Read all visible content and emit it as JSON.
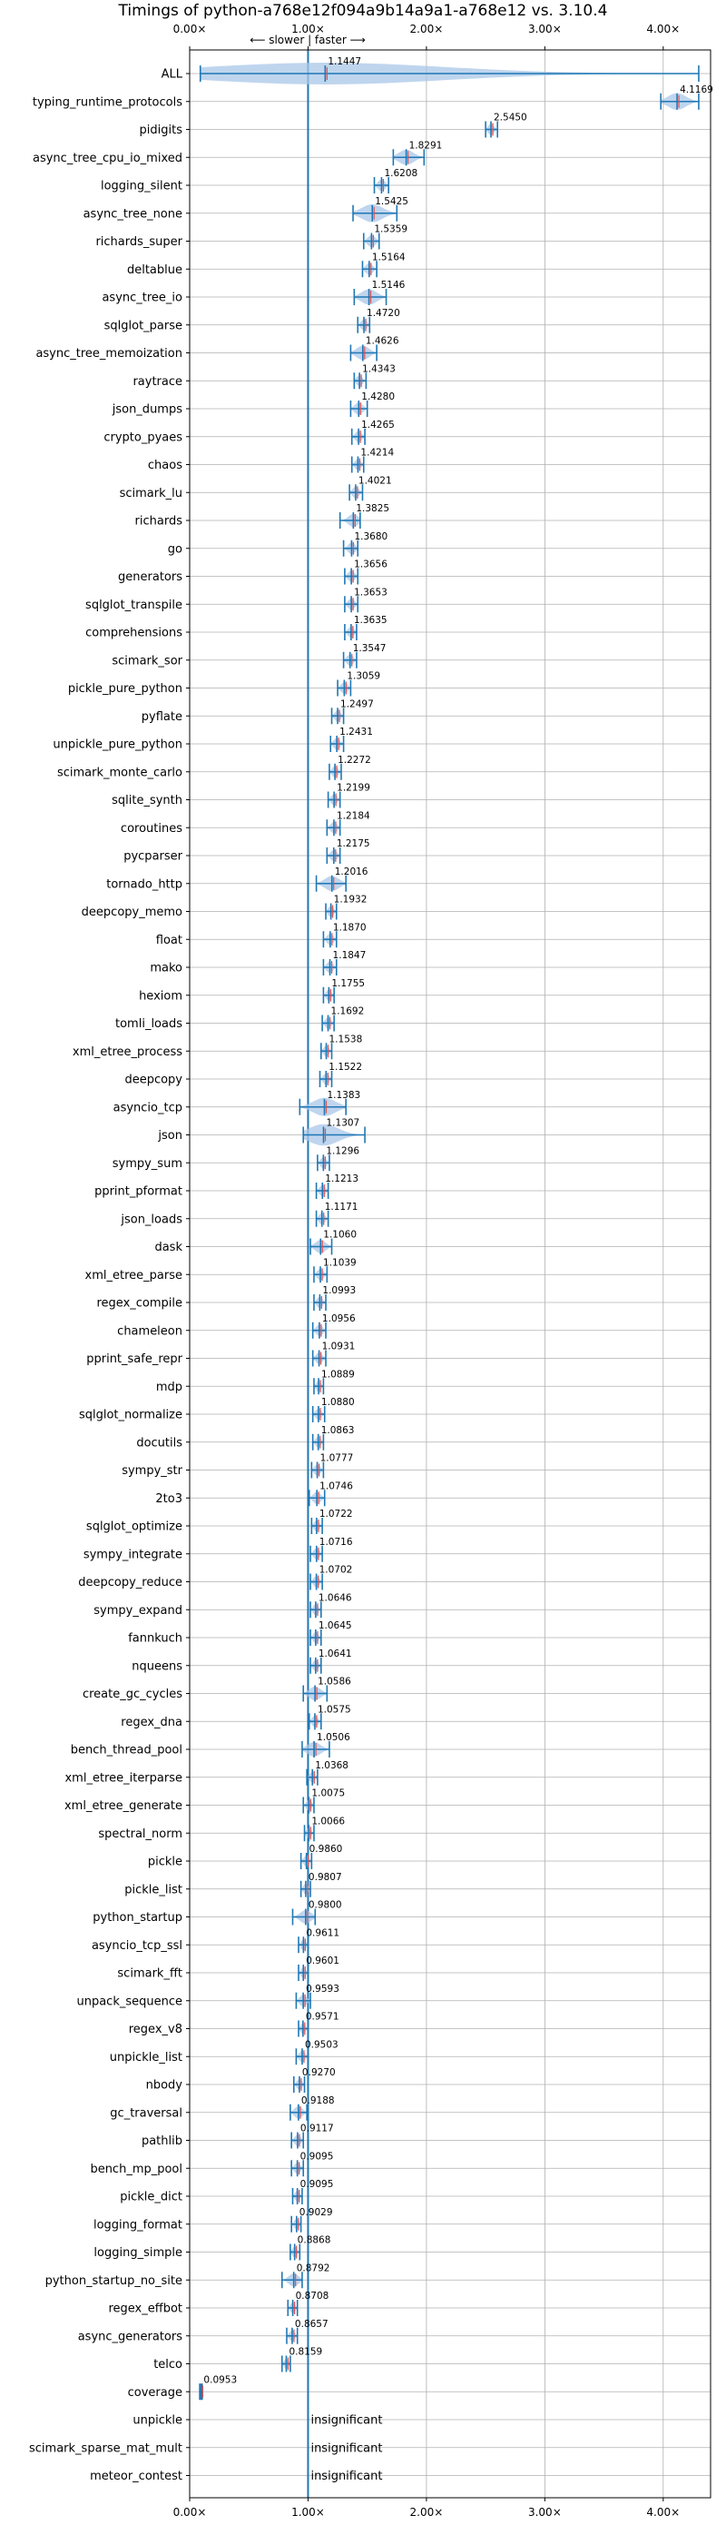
{
  "chart_data": {
    "type": "violin",
    "title": "Timings of python-a768e12f094a9b14a9a1-a768e12 vs. 3.10.4",
    "direction_hint": "⟵ slower | faster ⟶",
    "xlim": [
      0,
      4.4
    ],
    "xticks": [
      "0.00×",
      "1.00×",
      "2.00×",
      "3.00×",
      "4.00×"
    ],
    "reference_line": 1.0,
    "grid": true,
    "insignificant_label": "insignificant",
    "benchmarks": [
      {
        "name": "ALL",
        "value": 1.1447,
        "min": 0.09,
        "max": 4.3
      },
      {
        "name": "typing_runtime_protocols",
        "value": 4.1169,
        "min": 3.98,
        "max": 4.3
      },
      {
        "name": "pidigits",
        "value": 2.545,
        "min": 2.5,
        "max": 2.6
      },
      {
        "name": "async_tree_cpu_io_mixed",
        "value": 1.8291,
        "min": 1.72,
        "max": 1.98
      },
      {
        "name": "logging_silent",
        "value": 1.6208,
        "min": 1.56,
        "max": 1.68
      },
      {
        "name": "async_tree_none",
        "value": 1.5425,
        "min": 1.38,
        "max": 1.75
      },
      {
        "name": "richards_super",
        "value": 1.5359,
        "min": 1.47,
        "max": 1.6
      },
      {
        "name": "deltablue",
        "value": 1.5164,
        "min": 1.46,
        "max": 1.58
      },
      {
        "name": "async_tree_io",
        "value": 1.5146,
        "min": 1.39,
        "max": 1.66
      },
      {
        "name": "sqlglot_parse",
        "value": 1.472,
        "min": 1.42,
        "max": 1.52
      },
      {
        "name": "async_tree_memoization",
        "value": 1.4626,
        "min": 1.36,
        "max": 1.58
      },
      {
        "name": "raytrace",
        "value": 1.4343,
        "min": 1.39,
        "max": 1.49
      },
      {
        "name": "json_dumps",
        "value": 1.428,
        "min": 1.36,
        "max": 1.5
      },
      {
        "name": "crypto_pyaes",
        "value": 1.4265,
        "min": 1.37,
        "max": 1.48
      },
      {
        "name": "chaos",
        "value": 1.4214,
        "min": 1.37,
        "max": 1.47
      },
      {
        "name": "scimark_lu",
        "value": 1.4021,
        "min": 1.35,
        "max": 1.46
      },
      {
        "name": "richards",
        "value": 1.3825,
        "min": 1.27,
        "max": 1.44
      },
      {
        "name": "go",
        "value": 1.368,
        "min": 1.3,
        "max": 1.42
      },
      {
        "name": "generators",
        "value": 1.3656,
        "min": 1.31,
        "max": 1.42
      },
      {
        "name": "sqlglot_transpile",
        "value": 1.3653,
        "min": 1.31,
        "max": 1.42
      },
      {
        "name": "comprehensions",
        "value": 1.3635,
        "min": 1.31,
        "max": 1.41
      },
      {
        "name": "scimark_sor",
        "value": 1.3547,
        "min": 1.3,
        "max": 1.41
      },
      {
        "name": "pickle_pure_python",
        "value": 1.3059,
        "min": 1.25,
        "max": 1.36
      },
      {
        "name": "pyflate",
        "value": 1.2497,
        "min": 1.2,
        "max": 1.3
      },
      {
        "name": "unpickle_pure_python",
        "value": 1.2431,
        "min": 1.19,
        "max": 1.3
      },
      {
        "name": "scimark_monte_carlo",
        "value": 1.2272,
        "min": 1.18,
        "max": 1.28
      },
      {
        "name": "sqlite_synth",
        "value": 1.2199,
        "min": 1.17,
        "max": 1.27
      },
      {
        "name": "coroutines",
        "value": 1.2184,
        "min": 1.16,
        "max": 1.27
      },
      {
        "name": "pycparser",
        "value": 1.2175,
        "min": 1.16,
        "max": 1.27
      },
      {
        "name": "tornado_http",
        "value": 1.2016,
        "min": 1.07,
        "max": 1.32
      },
      {
        "name": "deepcopy_memo",
        "value": 1.1932,
        "min": 1.15,
        "max": 1.24
      },
      {
        "name": "float",
        "value": 1.187,
        "min": 1.13,
        "max": 1.24
      },
      {
        "name": "mako",
        "value": 1.1847,
        "min": 1.13,
        "max": 1.24
      },
      {
        "name": "hexiom",
        "value": 1.1755,
        "min": 1.13,
        "max": 1.22
      },
      {
        "name": "tomli_loads",
        "value": 1.1692,
        "min": 1.12,
        "max": 1.22
      },
      {
        "name": "xml_etree_process",
        "value": 1.1538,
        "min": 1.11,
        "max": 1.2
      },
      {
        "name": "deepcopy",
        "value": 1.1522,
        "min": 1.1,
        "max": 1.2
      },
      {
        "name": "asyncio_tcp",
        "value": 1.1383,
        "min": 0.93,
        "max": 1.32
      },
      {
        "name": "json",
        "value": 1.1307,
        "min": 0.96,
        "max": 1.48
      },
      {
        "name": "sympy_sum",
        "value": 1.1296,
        "min": 1.08,
        "max": 1.18
      },
      {
        "name": "pprint_pformat",
        "value": 1.1213,
        "min": 1.07,
        "max": 1.17
      },
      {
        "name": "json_loads",
        "value": 1.1171,
        "min": 1.07,
        "max": 1.17
      },
      {
        "name": "dask",
        "value": 1.106,
        "min": 1.02,
        "max": 1.2
      },
      {
        "name": "xml_etree_parse",
        "value": 1.1039,
        "min": 1.05,
        "max": 1.16
      },
      {
        "name": "regex_compile",
        "value": 1.0993,
        "min": 1.05,
        "max": 1.15
      },
      {
        "name": "chameleon",
        "value": 1.0956,
        "min": 1.04,
        "max": 1.15
      },
      {
        "name": "pprint_safe_repr",
        "value": 1.0931,
        "min": 1.04,
        "max": 1.15
      },
      {
        "name": "mdp",
        "value": 1.0889,
        "min": 1.05,
        "max": 1.13
      },
      {
        "name": "sqlglot_normalize",
        "value": 1.088,
        "min": 1.04,
        "max": 1.14
      },
      {
        "name": "docutils",
        "value": 1.0863,
        "min": 1.04,
        "max": 1.13
      },
      {
        "name": "sympy_str",
        "value": 1.0777,
        "min": 1.03,
        "max": 1.13
      },
      {
        "name": "2to3",
        "value": 1.0746,
        "min": 1.01,
        "max": 1.14
      },
      {
        "name": "sqlglot_optimize",
        "value": 1.0722,
        "min": 1.03,
        "max": 1.12
      },
      {
        "name": "sympy_integrate",
        "value": 1.0716,
        "min": 1.02,
        "max": 1.12
      },
      {
        "name": "deepcopy_reduce",
        "value": 1.0702,
        "min": 1.02,
        "max": 1.12
      },
      {
        "name": "sympy_expand",
        "value": 1.0646,
        "min": 1.02,
        "max": 1.11
      },
      {
        "name": "fannkuch",
        "value": 1.0645,
        "min": 1.02,
        "max": 1.11
      },
      {
        "name": "nqueens",
        "value": 1.0641,
        "min": 1.02,
        "max": 1.11
      },
      {
        "name": "create_gc_cycles",
        "value": 1.0586,
        "min": 0.96,
        "max": 1.16
      },
      {
        "name": "regex_dna",
        "value": 1.0575,
        "min": 1.01,
        "max": 1.11
      },
      {
        "name": "bench_thread_pool",
        "value": 1.0506,
        "min": 0.95,
        "max": 1.18
      },
      {
        "name": "xml_etree_iterparse",
        "value": 1.0368,
        "min": 0.99,
        "max": 1.08
      },
      {
        "name": "xml_etree_generate",
        "value": 1.0075,
        "min": 0.96,
        "max": 1.05
      },
      {
        "name": "spectral_norm",
        "value": 1.0066,
        "min": 0.97,
        "max": 1.05
      },
      {
        "name": "pickle",
        "value": 0.986,
        "min": 0.94,
        "max": 1.03
      },
      {
        "name": "pickle_list",
        "value": 0.9807,
        "min": 0.94,
        "max": 1.02
      },
      {
        "name": "python_startup",
        "value": 0.98,
        "min": 0.87,
        "max": 1.06
      },
      {
        "name": "asyncio_tcp_ssl",
        "value": 0.9611,
        "min": 0.92,
        "max": 1.0
      },
      {
        "name": "scimark_fft",
        "value": 0.9601,
        "min": 0.92,
        "max": 1.0
      },
      {
        "name": "unpack_sequence",
        "value": 0.9593,
        "min": 0.9,
        "max": 1.02
      },
      {
        "name": "regex_v8",
        "value": 0.9571,
        "min": 0.92,
        "max": 1.0
      },
      {
        "name": "unpickle_list",
        "value": 0.9503,
        "min": 0.9,
        "max": 1.0
      },
      {
        "name": "nbody",
        "value": 0.927,
        "min": 0.88,
        "max": 0.97
      },
      {
        "name": "gc_traversal",
        "value": 0.9188,
        "min": 0.85,
        "max": 0.99
      },
      {
        "name": "pathlib",
        "value": 0.9117,
        "min": 0.86,
        "max": 0.96
      },
      {
        "name": "bench_mp_pool",
        "value": 0.9095,
        "min": 0.86,
        "max": 0.96
      },
      {
        "name": "pickle_dict",
        "value": 0.9095,
        "min": 0.87,
        "max": 0.95
      },
      {
        "name": "logging_format",
        "value": 0.9029,
        "min": 0.86,
        "max": 0.94
      },
      {
        "name": "logging_simple",
        "value": 0.8868,
        "min": 0.85,
        "max": 0.93
      },
      {
        "name": "python_startup_no_site",
        "value": 0.8792,
        "min": 0.78,
        "max": 0.95
      },
      {
        "name": "regex_effbot",
        "value": 0.8708,
        "min": 0.83,
        "max": 0.91
      },
      {
        "name": "async_generators",
        "value": 0.8657,
        "min": 0.82,
        "max": 0.91
      },
      {
        "name": "telco",
        "value": 0.8159,
        "min": 0.78,
        "max": 0.85
      },
      {
        "name": "coverage",
        "value": 0.0953,
        "min": 0.085,
        "max": 0.105
      },
      {
        "name": "unpickle",
        "value": null
      },
      {
        "name": "scimark_sparse_mat_mult",
        "value": null
      },
      {
        "name": "meteor_contest",
        "value": null
      }
    ]
  },
  "colors": {
    "violin": "#a9c7e8",
    "whisker": "#1f77b4",
    "mean": "#e05050",
    "reference": "#1f77b4",
    "grid": "#b0b0b0"
  }
}
